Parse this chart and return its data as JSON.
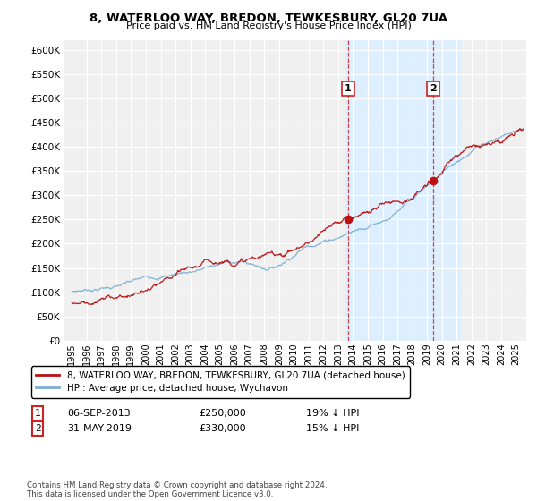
{
  "title": "8, WATERLOO WAY, BREDON, TEWKESBURY, GL20 7UA",
  "subtitle": "Price paid vs. HM Land Registry's House Price Index (HPI)",
  "ylim": [
    0,
    620000
  ],
  "xlim_start": 1994.5,
  "xlim_end": 2025.7,
  "legend_line1": "8, WATERLOO WAY, BREDON, TEWKESBURY, GL20 7UA (detached house)",
  "legend_line2": "HPI: Average price, detached house, Wychavon",
  "annotation1_date": "06-SEP-2013",
  "annotation1_price": "£250,000",
  "annotation1_pct": "19% ↓ HPI",
  "annotation1_year": 2013.67,
  "annotation1_value": 250000,
  "annotation2_date": "31-MAY-2019",
  "annotation2_price": "£330,000",
  "annotation2_pct": "15% ↓ HPI",
  "annotation2_year": 2019.42,
  "annotation2_value": 330000,
  "shade_start": 2013.5,
  "shade_end": 2021.2,
  "line1_color": "#bb1111",
  "line2_color": "#7aaed4",
  "shade_color": "#ddeeff",
  "marker_color": "#bb1111",
  "vline_color": "#cc2222",
  "footer": "Contains HM Land Registry data © Crown copyright and database right 2024.\nThis data is licensed under the Open Government Licence v3.0.",
  "background_color": "#ffffff",
  "plot_bg_color": "#f0f0f0"
}
